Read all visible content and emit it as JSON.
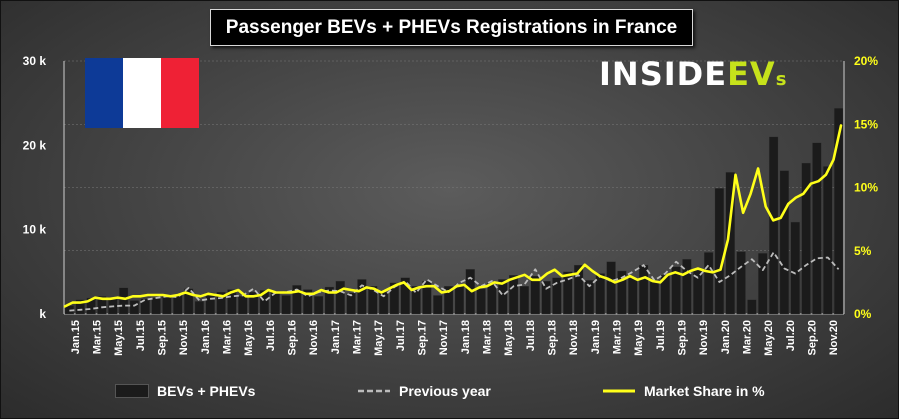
{
  "title": "Passenger BEVs + PHEVs Registrations in France",
  "logo": {
    "inside": "INSIDE",
    "ev": "EV",
    "s": "s"
  },
  "colors": {
    "bar": "#1b1b1b",
    "previous_year": "#bcbcbc",
    "market_share": "#ffff1a",
    "logo_accent": "#c6e21b",
    "flag_blue": "#0d3a97",
    "flag_white": "#ffffff",
    "flag_red": "#ef2135",
    "text": "#ffffff",
    "grid": "#7a7a7a"
  },
  "flag_icon": "france-flag",
  "legend": {
    "bars": "BEVs + PHEVs",
    "previous": "Previous year",
    "share": "Market Share in %"
  },
  "chart_data": {
    "type": "bar",
    "title": "Passenger BEVs + PHEVs Registrations in France",
    "x_tick_labels": [
      "Jan.15",
      "Mar.15",
      "May.15",
      "Jul.15",
      "Sep.15",
      "Nov.15",
      "Jan.16",
      "Mar.16",
      "May.16",
      "Jul.16",
      "Sep.16",
      "Nov.16",
      "Jan.17",
      "Mar.17",
      "May.17",
      "Jul.17",
      "Sep.17",
      "Nov.17",
      "Jan.18",
      "Mar.18",
      "May.18",
      "Jul.18",
      "Sep.18",
      "Nov.18",
      "Jan.19",
      "Mar.19",
      "May.19",
      "Jul.19",
      "Sep.19",
      "Nov.19",
      "Jan.20",
      "Mar.20",
      "May.20",
      "Jul.20",
      "Sep.20",
      "Nov.20"
    ],
    "y_left": {
      "ticks": [
        0,
        10000,
        20000,
        30000
      ],
      "tick_labels": [
        "k",
        "10 k",
        "20 k",
        "30 k"
      ],
      "range": [
        0,
        30000
      ]
    },
    "y_right": {
      "ticks": [
        0,
        5,
        10,
        15,
        20
      ],
      "tick_labels": [
        "0%",
        "5%",
        "10%",
        "15%",
        "20%"
      ],
      "range": [
        0,
        20
      ]
    },
    "grid": true,
    "legend_position": "bottom",
    "series": [
      {
        "name": "BEVs + PHEVs",
        "type": "bar",
        "axis": "left",
        "values": [
          1000,
          1700,
          1900,
          2100,
          2000,
          3100,
          1600,
          1800,
          1900,
          2100,
          2200,
          3000,
          1500,
          2500,
          2600,
          2900,
          2100,
          2600,
          2800,
          2700,
          2200,
          3400,
          2900,
          2100,
          3200,
          3900,
          2500,
          4100,
          3300,
          2600,
          3700,
          4300,
          3300,
          3900,
          2200,
          3300,
          3500,
          5300,
          3000,
          3700,
          4100,
          4600,
          3300,
          4500,
          3900,
          4300,
          5000,
          5800,
          4000,
          4800,
          6200,
          5100,
          4300,
          5800,
          3800,
          4600,
          5600,
          6500,
          5200,
          7300,
          14900,
          16800,
          7400,
          1700,
          7200,
          21000,
          17000,
          10900,
          17900,
          20300,
          17500,
          24400
        ]
      },
      {
        "name": "Previous year",
        "type": "line",
        "axis": "left",
        "values": [
          400,
          500,
          600,
          800,
          900,
          1000,
          1000,
          1700,
          1900,
          2100,
          2000,
          3100,
          1600,
          1800,
          1900,
          2100,
          2200,
          3000,
          1500,
          2500,
          2600,
          2900,
          2100,
          2600,
          2800,
          2700,
          2200,
          3400,
          2900,
          2100,
          3200,
          3900,
          2500,
          4100,
          3300,
          2600,
          3700,
          4300,
          3300,
          3900,
          2200,
          3300,
          3500,
          5300,
          3000,
          3700,
          4100,
          4600,
          3300,
          4500,
          3900,
          4300,
          5000,
          5800,
          4000,
          4800,
          6200,
          5100,
          4300,
          5800,
          3800,
          4600,
          5600,
          6500,
          5200,
          7300,
          5400,
          4800,
          5800,
          6600,
          6700,
          5300
        ]
      },
      {
        "name": "Market Share in %",
        "type": "line",
        "axis": "right",
        "values": [
          0.6,
          0.9,
          0.9,
          1.0,
          1.3,
          1.2,
          1.2,
          1.3,
          1.2,
          1.4,
          1.4,
          1.5,
          1.5,
          1.5,
          1.4,
          1.5,
          1.7,
          1.5,
          1.4,
          1.6,
          1.5,
          1.4,
          1.7,
          1.9,
          1.4,
          1.4,
          1.5,
          1.9,
          1.7,
          1.7,
          1.7,
          1.8,
          1.6,
          1.6,
          1.9,
          1.7,
          1.7,
          2.0,
          1.9,
          1.8,
          2.1,
          2.0,
          1.7,
          2.0,
          2.3,
          2.5,
          1.9,
          2.1,
          2.2,
          2.2,
          1.7,
          1.8,
          2.2,
          2.3,
          1.8,
          2.1,
          2.2,
          2.5,
          2.4,
          2.7,
          2.9,
          3.1,
          2.7,
          2.7,
          3.2,
          3.5,
          3.0,
          3.1,
          3.2,
          3.9,
          3.4,
          3.0,
          2.8,
          2.5,
          2.7,
          3.0,
          2.7,
          2.9,
          2.6,
          2.5,
          3.1,
          3.3,
          3.1,
          3.4,
          3.6,
          3.4,
          3.3,
          3.5,
          5.9,
          11.0,
          8.0,
          9.5,
          11.5,
          8.5,
          7.4,
          7.6,
          8.7,
          9.2,
          9.5,
          10.3,
          10.5,
          11.0,
          12.2,
          14.9
        ]
      }
    ]
  }
}
